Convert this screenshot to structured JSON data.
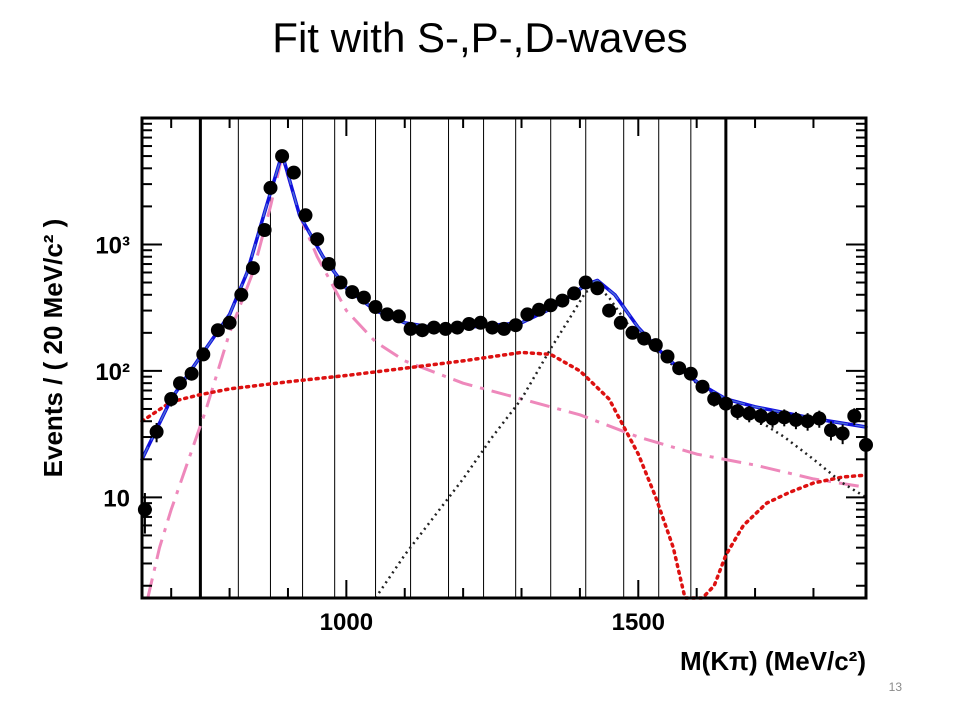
{
  "slide": {
    "title": "Fit with S-,P-,D-waves",
    "page_number": "13"
  },
  "chart_data": {
    "type": "scatter",
    "title": "",
    "xlabel": "M(Kπ)  (MeV/c²)",
    "ylabel": "Events / ( 20 MeV/c² )",
    "xlim": [
      650,
      1890
    ],
    "ylim": [
      1.6,
      10000
    ],
    "yscale": "log",
    "grid": false,
    "x_ticks": [
      {
        "value": 1000,
        "label": "1000"
      },
      {
        "value": 1500,
        "label": "1500"
      }
    ],
    "y_ticks": [
      {
        "value": 10,
        "label": "10"
      },
      {
        "value": 100,
        "label": "10²"
      },
      {
        "value": 1000,
        "label": "10³"
      }
    ],
    "bin_edges_thin": [
      815,
      870,
      925,
      980,
      1050,
      1110,
      1175,
      1235,
      1290,
      1350,
      1410,
      1475,
      1535,
      1590
    ],
    "bin_edges_thick": [
      750,
      1650
    ],
    "series": [
      {
        "kind": "data",
        "color": "#000000",
        "x": [
          655,
          675,
          700,
          715,
          735,
          755,
          780,
          800,
          820,
          840,
          860,
          870,
          890,
          910,
          930,
          950,
          970,
          990,
          1010,
          1030,
          1050,
          1070,
          1090,
          1110,
          1130,
          1150,
          1170,
          1190,
          1210,
          1230,
          1250,
          1270,
          1290,
          1310,
          1330,
          1350,
          1370,
          1390,
          1410,
          1430,
          1450,
          1470,
          1490,
          1510,
          1530,
          1550,
          1570,
          1590,
          1610,
          1630,
          1650,
          1670,
          1690,
          1710,
          1730,
          1750,
          1770,
          1790,
          1810,
          1830,
          1850,
          1870,
          1890
        ],
        "y": [
          8,
          33,
          60,
          80,
          95,
          135,
          210,
          240,
          400,
          650,
          1300,
          2800,
          5000,
          3700,
          1700,
          1100,
          700,
          500,
          420,
          380,
          320,
          280,
          270,
          215,
          210,
          220,
          215,
          220,
          235,
          240,
          220,
          215,
          230,
          280,
          305,
          330,
          360,
          410,
          500,
          450,
          300,
          240,
          200,
          180,
          160,
          130,
          105,
          95,
          75,
          60,
          55,
          48,
          46,
          44,
          42,
          43,
          41,
          40,
          42,
          34,
          32,
          44,
          26
        ]
      },
      {
        "kind": "total-fit",
        "color": "#1010dd",
        "x": [
          650,
          700,
          750,
          800,
          830,
          860,
          890,
          920,
          960,
          1000,
          1050,
          1100,
          1150,
          1200,
          1250,
          1300,
          1350,
          1380,
          1410,
          1430,
          1460,
          1500,
          1550,
          1600,
          1650,
          1700,
          1800,
          1890
        ],
        "y": [
          20,
          60,
          130,
          280,
          600,
          1800,
          5200,
          1700,
          800,
          450,
          300,
          240,
          220,
          220,
          230,
          240,
          310,
          380,
          480,
          520,
          400,
          220,
          125,
          82,
          60,
          52,
          42,
          36
        ]
      },
      {
        "kind": "p-wave",
        "color": "#ee88bb",
        "x": [
          660,
          680,
          700,
          730,
          760,
          800,
          840,
          870,
          890,
          920,
          950,
          1000,
          1050,
          1100,
          1200,
          1300,
          1400,
          1500,
          1600,
          1700,
          1800,
          1890
        ],
        "y": [
          1.6,
          4,
          8,
          20,
          50,
          200,
          600,
          2000,
          5000,
          1700,
          800,
          300,
          170,
          120,
          80,
          60,
          45,
          30,
          22,
          18,
          14,
          12
        ]
      },
      {
        "kind": "s-wave",
        "color": "#dd1111",
        "x": [
          650,
          700,
          750,
          800,
          900,
          1000,
          1100,
          1200,
          1300,
          1350,
          1400,
          1450,
          1500,
          1530,
          1560,
          1580,
          1610,
          1630,
          1650,
          1680,
          1720,
          1760,
          1800,
          1850,
          1890
        ],
        "y": [
          40,
          57,
          65,
          72,
          82,
          92,
          105,
          120,
          140,
          135,
          100,
          60,
          22,
          10,
          4,
          1.6,
          1.6,
          2,
          3.5,
          6,
          9,
          11,
          13,
          14.5,
          15
        ]
      },
      {
        "kind": "d-wave",
        "color": "#222222",
        "x": [
          1050,
          1100,
          1150,
          1200,
          1250,
          1300,
          1350,
          1380,
          1410,
          1430,
          1450,
          1480,
          1520,
          1560,
          1600,
          1650,
          1700,
          1750,
          1800,
          1850,
          1890
        ],
        "y": [
          1.6,
          3.5,
          7,
          14,
          30,
          60,
          150,
          250,
          420,
          470,
          380,
          240,
          160,
          110,
          80,
          58,
          42,
          30,
          20,
          13,
          10
        ]
      }
    ]
  }
}
